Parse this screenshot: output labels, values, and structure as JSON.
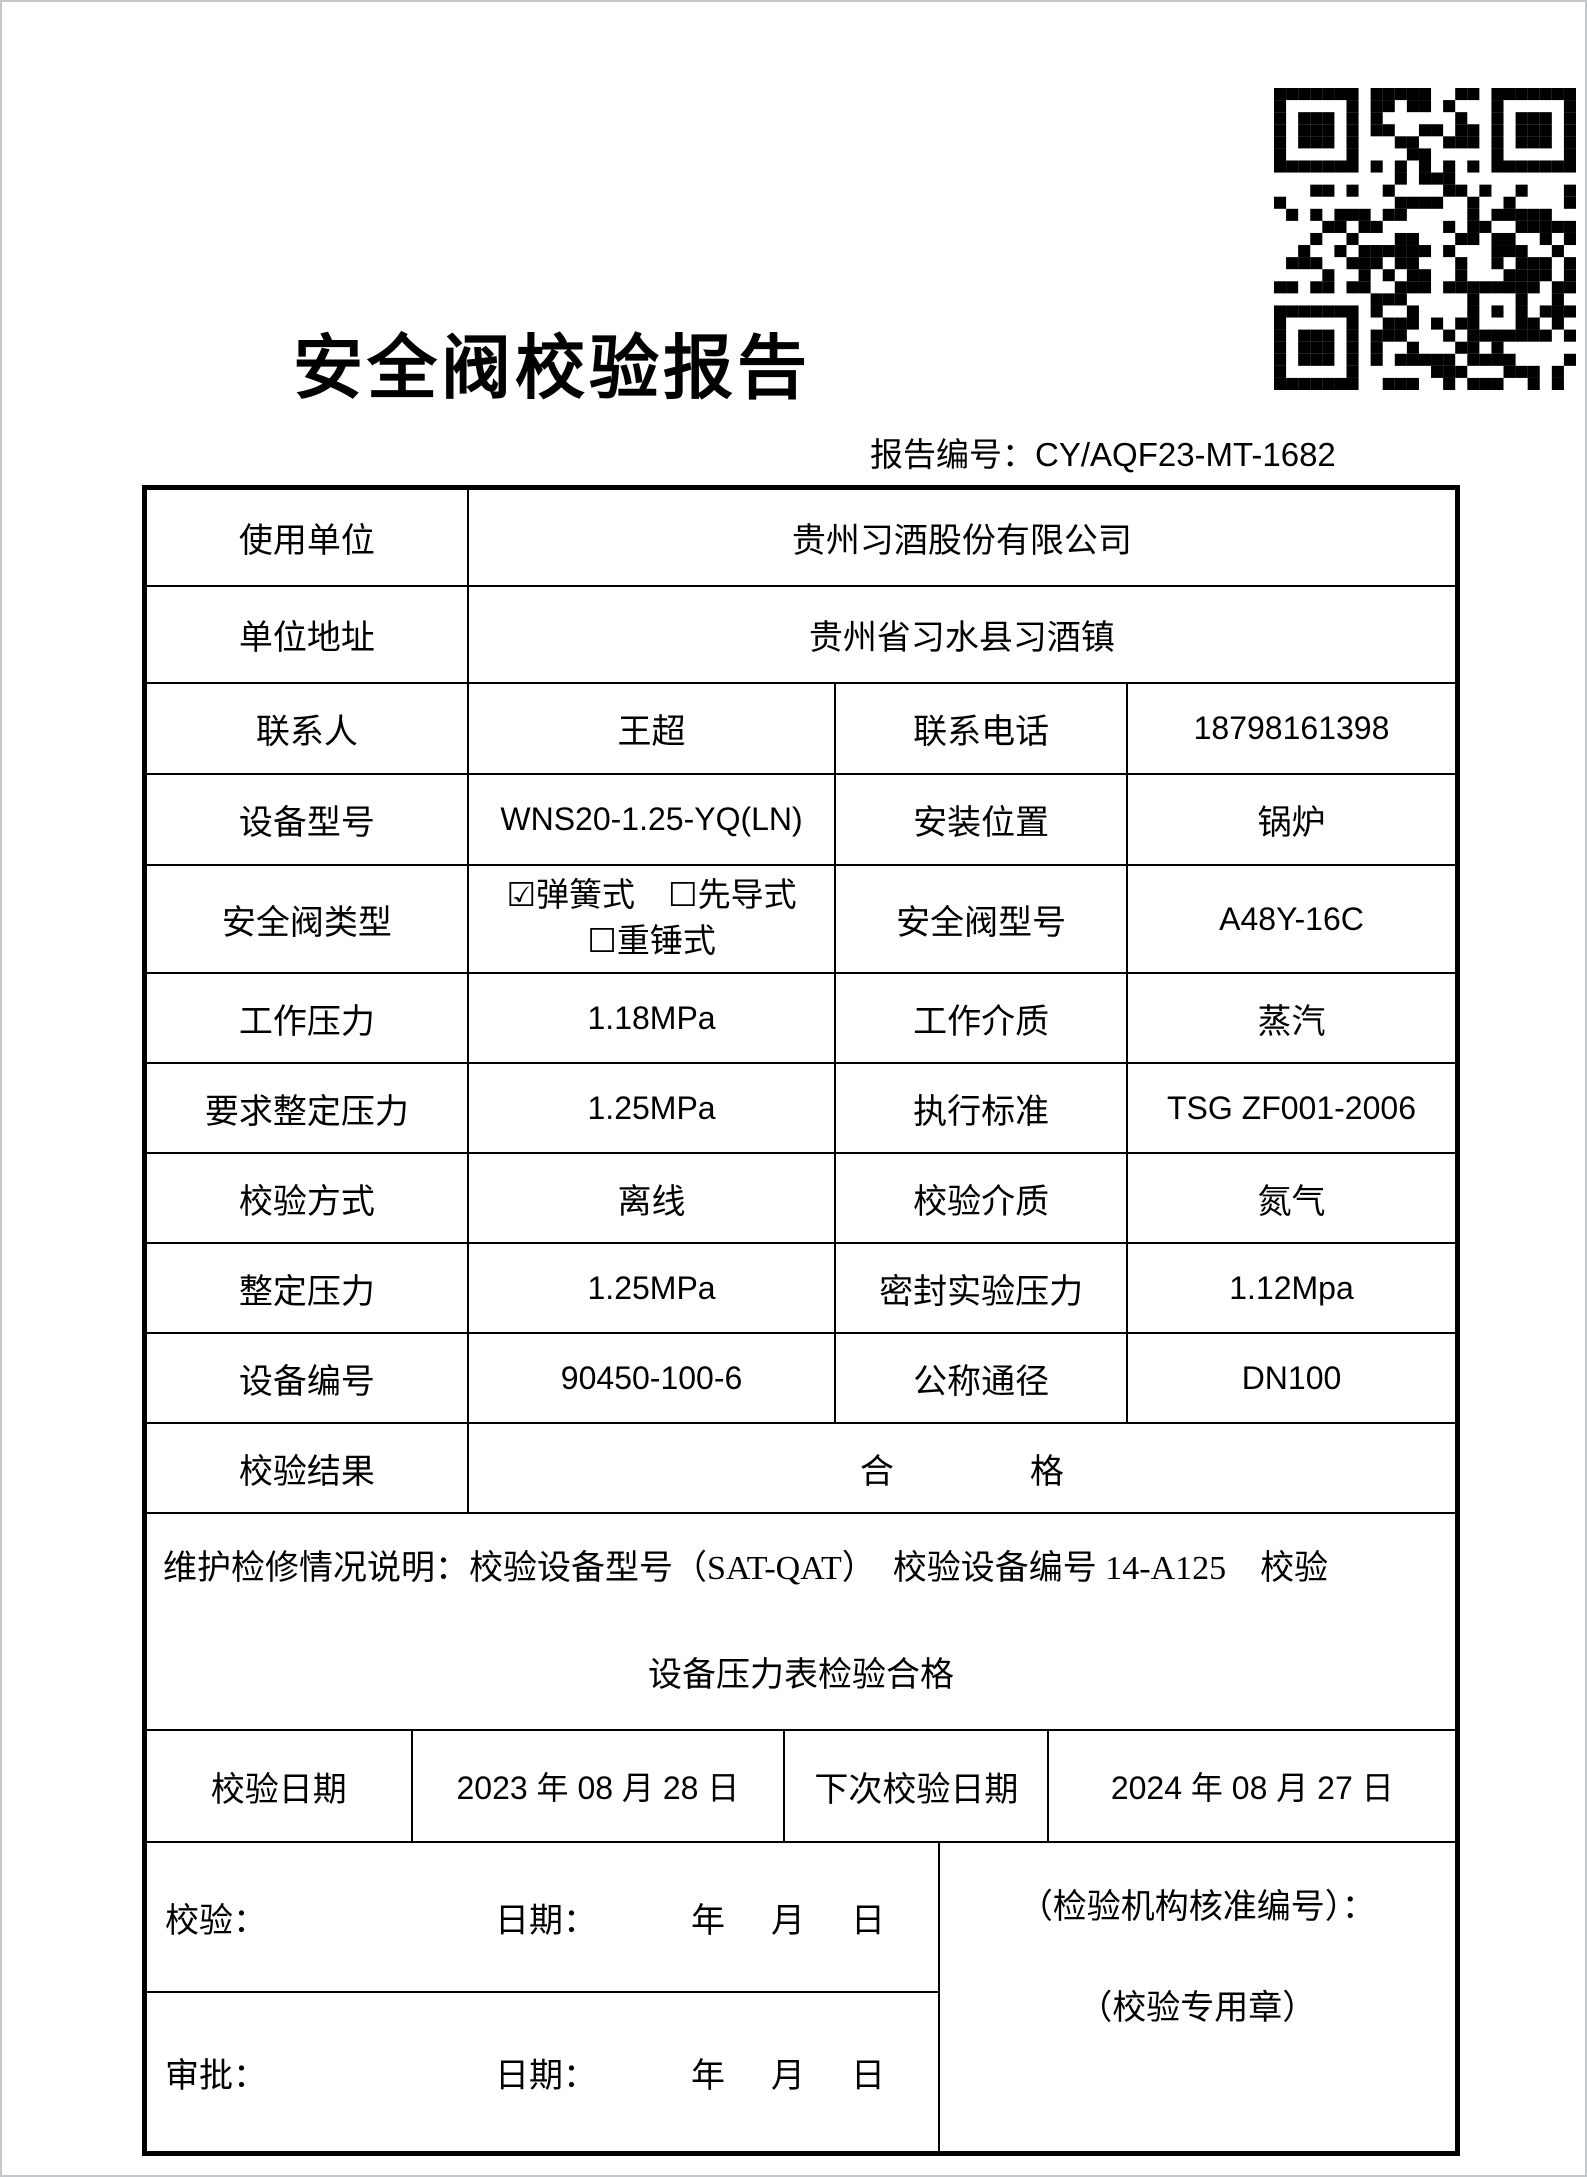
{
  "doc": {
    "title": "安全阀校验报告",
    "report_no_label": "报告编号：",
    "report_no": "CY/AQF23-MT-1682"
  },
  "fields": {
    "usage_unit": {
      "label": "使用单位",
      "value": "贵州习酒股份有限公司"
    },
    "unit_address": {
      "label": "单位地址",
      "value": "贵州省习水县习酒镇"
    },
    "contact": {
      "label": "联系人",
      "value": "王超"
    },
    "phone": {
      "label": "联系电话",
      "value": "18798161398"
    },
    "device_model": {
      "label": "设备型号",
      "value": "WNS20-1.25-YQ(LN)"
    },
    "install_position": {
      "label": "安装位置",
      "value": "锅炉"
    },
    "valve_type": {
      "label": "安全阀类型",
      "line1": "☑弹簧式　☐先导式",
      "line2": "☐重锤式"
    },
    "valve_model": {
      "label": "安全阀型号",
      "value": "A48Y-16C"
    },
    "working_pressure": {
      "label": "工作压力",
      "value": "1.18MPa"
    },
    "working_medium": {
      "label": "工作介质",
      "value": "蒸汽"
    },
    "required_set_pressure": {
      "label": "要求整定压力",
      "value": "1.25MPa"
    },
    "standard": {
      "label": "执行标准",
      "value": "TSG ZF001-2006"
    },
    "calibration_method": {
      "label": "校验方式",
      "value": "离线"
    },
    "calibration_medium": {
      "label": "校验介质",
      "value": "氮气"
    },
    "set_pressure": {
      "label": "整定压力",
      "value": "1.25MPa"
    },
    "seal_test_pressure": {
      "label": "密封实验压力",
      "value": "1.12Mpa"
    },
    "device_no": {
      "label": "设备编号",
      "value": "90450-100-6"
    },
    "nominal_diameter": {
      "label": "公称通径",
      "value": "DN100"
    },
    "result": {
      "label": "校验结果",
      "value": "合　　　　格"
    }
  },
  "maintenance": {
    "line1": "维护检修情况说明：校验设备型号（SAT-QAT）　校验设备编号 14-A125　校验",
    "line2": "设备压力表检验合格"
  },
  "dates": {
    "calibration_label": "校验日期",
    "calibration_value": "2023 年 08 月 28 日",
    "next_label": "下次校验日期",
    "next_value": "2024 年 08 月 27 日"
  },
  "signoff": {
    "verify_label": "校验：",
    "approve_label": "审批：",
    "date_label": "日期：",
    "ymd": "年　月　日",
    "stamp_line1": "（检验机构核准编号）：",
    "stamp_line2": "（校验专用章）"
  },
  "colors": {
    "ink": "#000000",
    "paper": "#ffffff"
  }
}
